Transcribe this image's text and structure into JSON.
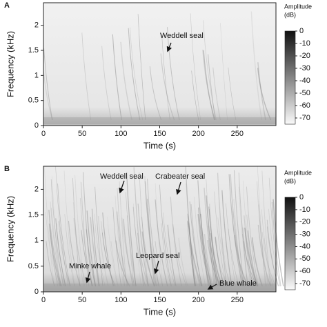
{
  "chart_data": [
    {
      "type": "spectrogram",
      "panel": "A",
      "xlabel": "Time (s)",
      "ylabel": "Frequency (kHz)",
      "xlim": [
        0,
        300
      ],
      "xticks": [
        0,
        50,
        100,
        150,
        200,
        250
      ],
      "ylim": [
        0,
        2.45
      ],
      "yticks": [
        0,
        0.5,
        1,
        1.5,
        2
      ],
      "colorbar_title": "Amplitude",
      "colorbar_unit": "(dB)",
      "clim": [
        -75,
        0
      ],
      "cticks": [
        0,
        -10,
        -20,
        -30,
        -40,
        -50,
        -60,
        -70
      ],
      "annotations": [
        "Weddell seal"
      ]
    },
    {
      "type": "spectrogram",
      "panel": "B",
      "xlabel": "Time (s)",
      "ylabel": "Frequency (kHz)",
      "xlim": [
        0,
        300
      ],
      "xticks": [
        0,
        50,
        100,
        150,
        200,
        250
      ],
      "ylim": [
        0,
        2.45
      ],
      "yticks": [
        0,
        0.5,
        1,
        1.5,
        2
      ],
      "colorbar_title": "Amplitude",
      "colorbar_unit": "(dB)",
      "clim": [
        -75,
        0
      ],
      "cticks": [
        0,
        -10,
        -20,
        -30,
        -40,
        -50,
        -60,
        -70
      ],
      "annotations": [
        "Weddell seal",
        "Crabeater seal",
        "Leopard seal",
        "Minke whale",
        "Blue whale"
      ]
    }
  ]
}
